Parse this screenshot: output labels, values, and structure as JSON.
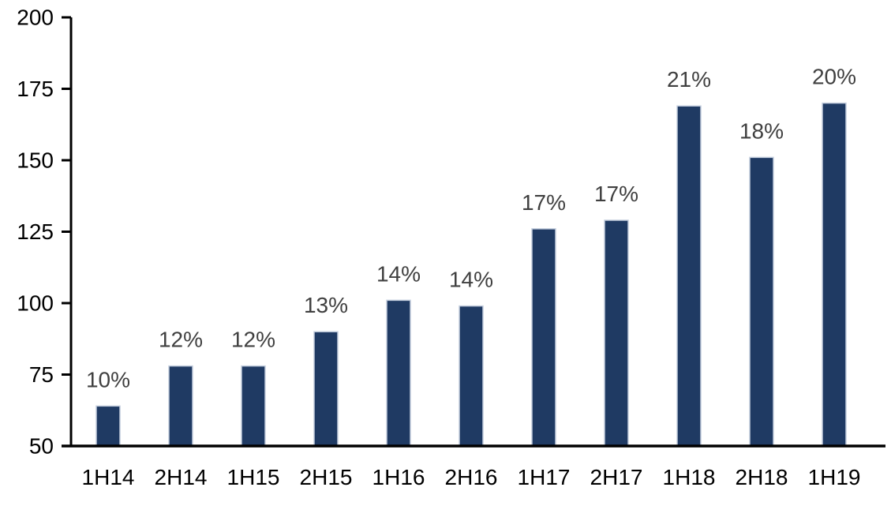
{
  "chart_data": {
    "type": "bar",
    "title": "",
    "xlabel": "",
    "ylabel": "",
    "categories": [
      "1H14",
      "2H14",
      "1H15",
      "2H15",
      "1H16",
      "2H16",
      "1H17",
      "2H17",
      "1H18",
      "2H18",
      "1H19"
    ],
    "values": [
      64,
      78,
      78,
      90,
      101,
      99,
      126,
      129,
      169,
      151,
      170
    ],
    "bar_labels": [
      "10%",
      "12%",
      "12%",
      "13%",
      "14%",
      "14%",
      "17%",
      "17%",
      "21%",
      "18%",
      "20%"
    ],
    "ylim": [
      50,
      200
    ],
    "yticks": [
      50,
      75,
      100,
      125,
      150,
      175,
      200
    ],
    "grid": false,
    "legend": false,
    "colors": {
      "bar_fill": "#1F3A63",
      "bar_stroke": "#C3CDDD",
      "axis": "#000000",
      "axis_tick_label": "#000000",
      "data_label": "#404040",
      "background": "#FFFFFF"
    }
  }
}
